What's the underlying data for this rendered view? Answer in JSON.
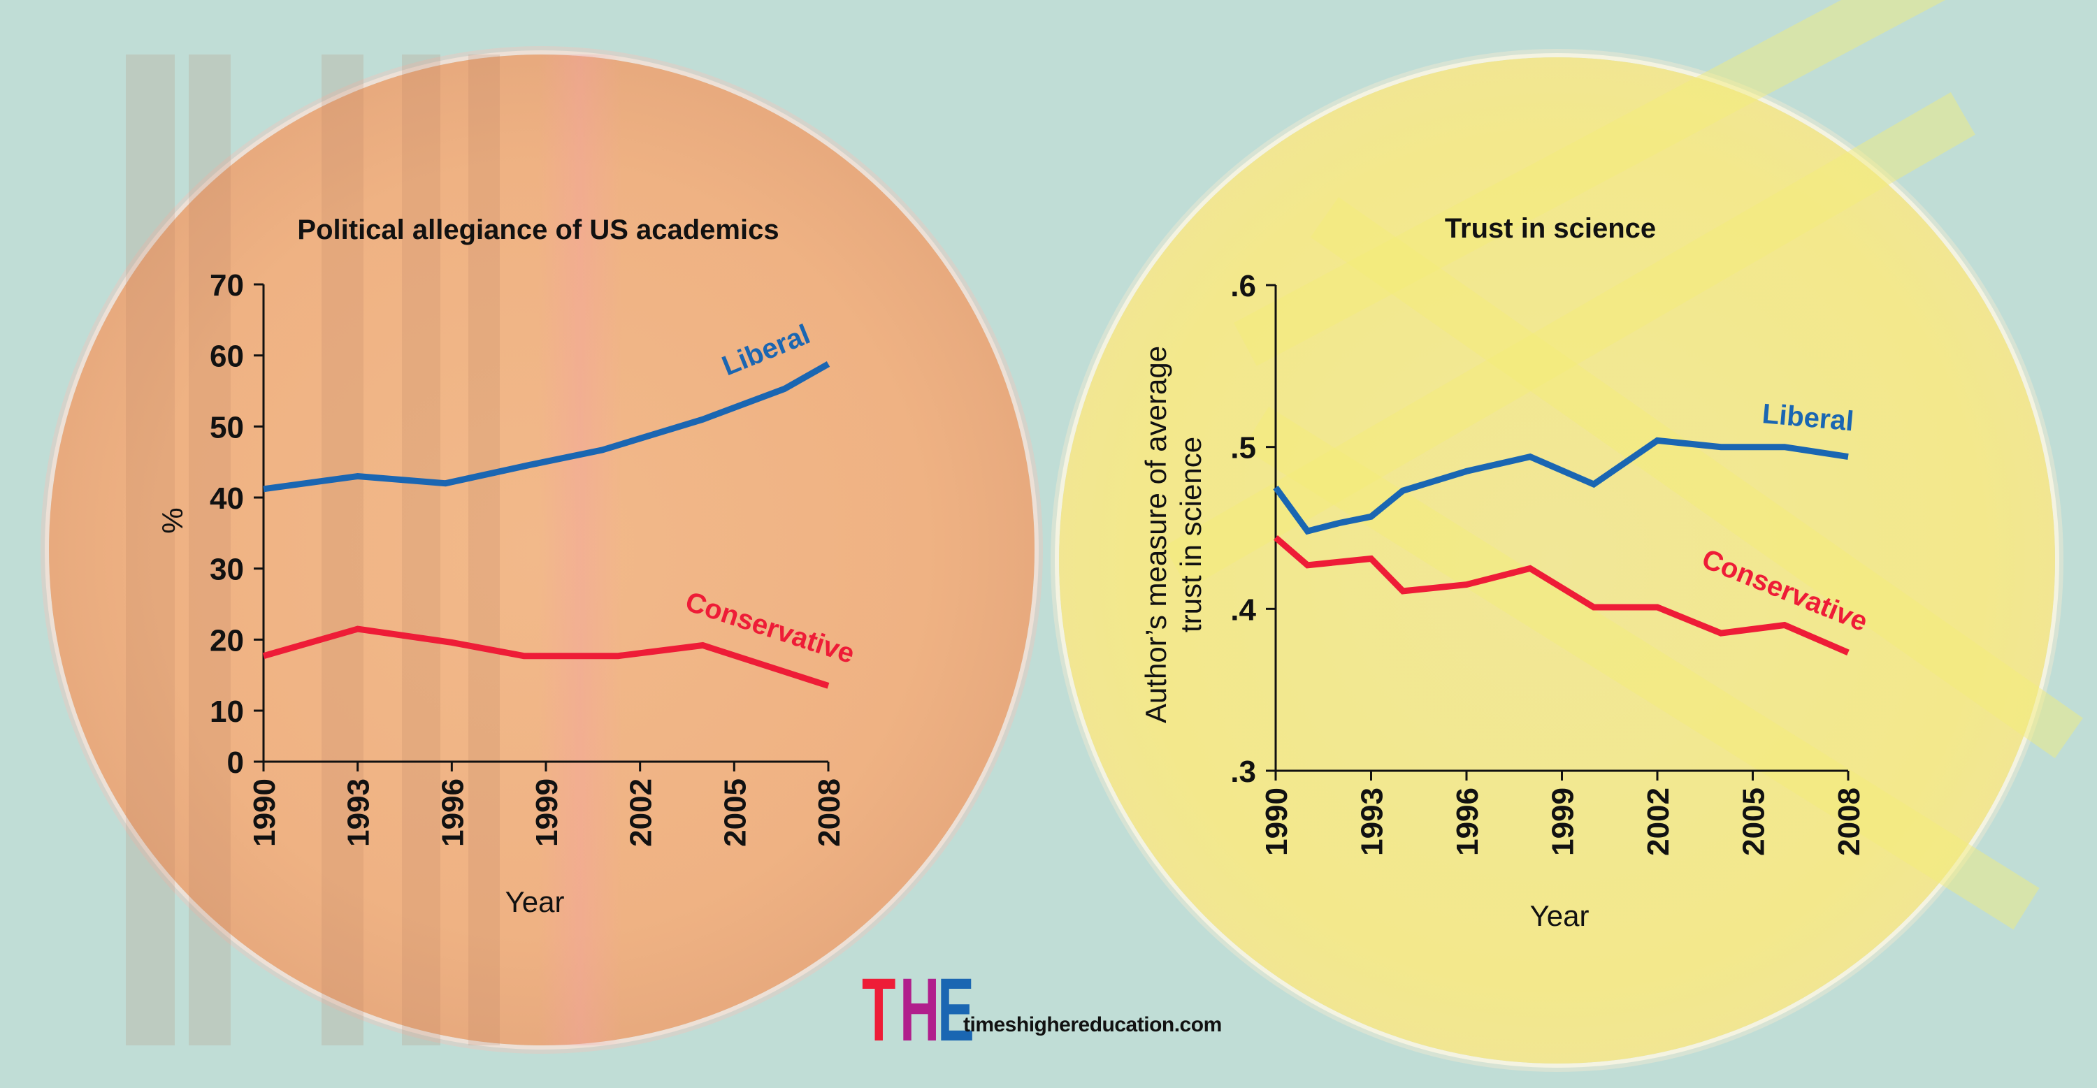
{
  "colors": {
    "background": "#c0ddd6",
    "liberal": "#1a66b2",
    "conservative": "#ee1c37",
    "logo_t": "#ee1c37",
    "logo_h": "#b11e8c",
    "logo_e": "#1a66b2"
  },
  "logo": {
    "letters": [
      "T",
      "H",
      "E"
    ],
    "site": "timeshighereducation.com"
  },
  "chart_data": [
    {
      "type": "line",
      "title": "Political allegiance of US academics",
      "xlabel": "Year",
      "ylabel": "%",
      "xlim": [
        1990,
        2008
      ],
      "ylim": [
        0,
        70
      ],
      "xticks": [
        1990,
        1993,
        1996,
        1999,
        2002,
        2005,
        2008
      ],
      "yticks": [
        0,
        10,
        20,
        30,
        40,
        50,
        60,
        70
      ],
      "grid": false,
      "series": [
        {
          "name": "Liberal",
          "color": "#1a66b2",
          "x": [
            1990,
            1993,
            1995.8,
            1998.5,
            2000.8,
            2004,
            2006.6,
            2008
          ],
          "y": [
            41.2,
            43.0,
            42.0,
            44.6,
            46.7,
            51.0,
            55.3,
            58.8
          ]
        },
        {
          "name": "Conservative",
          "color": "#ee1c37",
          "x": [
            1990,
            1993,
            1996,
            1998.3,
            2001.3,
            2004,
            2008
          ],
          "y": [
            17.7,
            21.5,
            19.6,
            17.7,
            17.7,
            19.2,
            13.5
          ]
        }
      ]
    },
    {
      "type": "line",
      "title": "Trust in science",
      "xlabel": "Year",
      "ylabel": "Author's measure of average trust in science",
      "ylabel_lines": [
        "Author’s measure of average",
        "trust in science"
      ],
      "xlim": [
        1990,
        2008
      ],
      "ylim": [
        0.3,
        0.6
      ],
      "xticks": [
        1990,
        1993,
        1996,
        1999,
        2002,
        2005,
        2008
      ],
      "yticks": [
        ".3",
        ".4",
        ".5",
        ".6"
      ],
      "ytick_values": [
        0.3,
        0.4,
        0.5,
        0.6
      ],
      "grid": false,
      "series": [
        {
          "name": "Liberal",
          "color": "#1a66b2",
          "x": [
            1990,
            1991,
            1992,
            1993,
            1994,
            1996,
            1998,
            2000,
            2002,
            2004,
            2006,
            2008
          ],
          "y": [
            0.475,
            0.448,
            0.453,
            0.457,
            0.473,
            0.485,
            0.494,
            0.477,
            0.504,
            0.5,
            0.5,
            0.494
          ]
        },
        {
          "name": "Conservative",
          "color": "#ee1c37",
          "x": [
            1990,
            1991,
            1993,
            1994,
            1996,
            1998,
            2000,
            2002,
            2004,
            2006,
            2008
          ],
          "y": [
            0.444,
            0.427,
            0.431,
            0.411,
            0.415,
            0.425,
            0.401,
            0.401,
            0.385,
            0.39,
            0.373
          ]
        }
      ]
    }
  ]
}
